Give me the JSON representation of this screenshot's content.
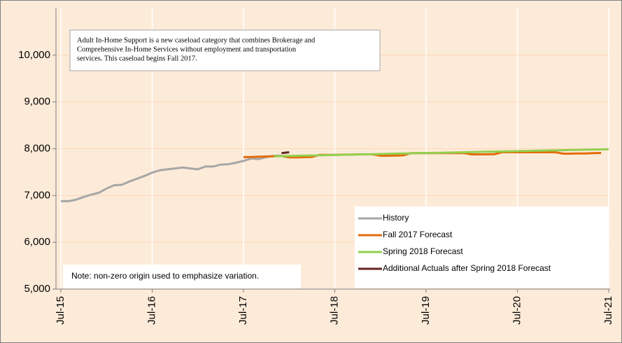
{
  "chart_data": {
    "type": "line",
    "annotation_lines": [
      "Adult In-Home Support is a new caseload category that combines Brokerage and",
      "Comprehensive In-Home Services without employment and transportation",
      "services. This caseload begins Fall 2017."
    ],
    "note": "Note: non-zero origin used to emphasize variation.",
    "categories": [
      "Jul-15",
      null,
      null,
      null,
      null,
      null,
      null,
      null,
      null,
      null,
      null,
      null,
      "Jul-16",
      null,
      null,
      null,
      null,
      null,
      null,
      null,
      null,
      null,
      null,
      null,
      "Jul-17",
      null,
      null,
      null,
      null,
      null,
      null,
      null,
      null,
      null,
      null,
      null,
      "Jul-18",
      null,
      null,
      null,
      null,
      null,
      null,
      null,
      null,
      null,
      null,
      null,
      "Jul-19",
      null,
      null,
      null,
      null,
      null,
      null,
      null,
      null,
      null,
      null,
      null,
      "Jul-20",
      null,
      null,
      null,
      null,
      null,
      null,
      null,
      null,
      null,
      null,
      null,
      "Jul-21"
    ],
    "series": [
      {
        "name": "History",
        "color": "#a6a6a6",
        "values": [
          6880,
          6880,
          6910,
          6970,
          7020,
          7060,
          7150,
          7220,
          7230,
          7300,
          7360,
          7420,
          7490,
          7540,
          7560,
          7580,
          7600,
          7580,
          7560,
          7620,
          7620,
          7660,
          7670,
          7700,
          7740,
          7790,
          7780,
          7820,
          7850,
          7850,
          null,
          null,
          null,
          null,
          null,
          null,
          null,
          null,
          null,
          null,
          null,
          null,
          null,
          null,
          null,
          null,
          null,
          null,
          null,
          null,
          null,
          null,
          null,
          null,
          null,
          null,
          null,
          null,
          null,
          null,
          null,
          null,
          null,
          null,
          null,
          null,
          null,
          null,
          null,
          null,
          null,
          null,
          null
        ]
      },
      {
        "name": "Fall 2017 Forecast",
        "color": "#e46c0a",
        "values": [
          null,
          null,
          null,
          null,
          null,
          null,
          null,
          null,
          null,
          null,
          null,
          null,
          null,
          null,
          null,
          null,
          null,
          null,
          null,
          null,
          null,
          null,
          null,
          null,
          7820,
          7825,
          7830,
          7835,
          7840,
          7845,
          7815,
          7815,
          7820,
          7825,
          7870,
          7870,
          7870,
          7875,
          7875,
          7880,
          7880,
          7880,
          7850,
          7850,
          7855,
          7860,
          7905,
          7905,
          7905,
          7905,
          7905,
          7905,
          7905,
          7905,
          7880,
          7880,
          7880,
          7885,
          7925,
          7925,
          7925,
          7925,
          7925,
          7925,
          7925,
          7925,
          7895,
          7895,
          7900,
          7900,
          7905,
          7910,
          null
        ]
      },
      {
        "name": "Spring 2018 Forecast",
        "color": "#92d050",
        "values": [
          null,
          null,
          null,
          null,
          null,
          null,
          null,
          null,
          null,
          null,
          null,
          null,
          null,
          null,
          null,
          null,
          null,
          null,
          null,
          null,
          null,
          null,
          null,
          null,
          null,
          null,
          null,
          null,
          7840,
          7843,
          7847,
          7850,
          7854,
          7857,
          7860,
          7864,
          7867,
          7871,
          7874,
          7878,
          7881,
          7884,
          7888,
          7891,
          7895,
          7898,
          7901,
          7905,
          7908,
          7912,
          7915,
          7918,
          7922,
          7925,
          7929,
          7932,
          7935,
          7939,
          7942,
          7946,
          7949,
          7952,
          7956,
          7959,
          7963,
          7966,
          7969,
          7973,
          7976,
          7980,
          7983,
          7986,
          7990
        ]
      },
      {
        "name": "Additional Actuals after Spring 2018 Forecast",
        "color": "#632423",
        "values": [
          null,
          null,
          null,
          null,
          null,
          null,
          null,
          null,
          null,
          null,
          null,
          null,
          null,
          null,
          null,
          null,
          null,
          null,
          null,
          null,
          null,
          null,
          null,
          null,
          null,
          null,
          null,
          null,
          null,
          7905,
          7925,
          null,
          null,
          null,
          null,
          null,
          null,
          null,
          null,
          null,
          null,
          null,
          null,
          null,
          null,
          null,
          null,
          null,
          null,
          null,
          null,
          null,
          null,
          null,
          null,
          null,
          null,
          null,
          null,
          null,
          null,
          null,
          null,
          null,
          null,
          null,
          null,
          null,
          null,
          null,
          null,
          null,
          null
        ]
      }
    ],
    "ylim": [
      5000,
      11000
    ],
    "yticks": [
      {
        "value": 5000,
        "label": "5,000"
      },
      {
        "value": 6000,
        "label": "6,000"
      },
      {
        "value": 7000,
        "label": "7,000"
      },
      {
        "value": 8000,
        "label": "8,000"
      },
      {
        "value": 9000,
        "label": "9,000"
      },
      {
        "value": 10000,
        "label": "10,000"
      }
    ],
    "grid": true
  }
}
